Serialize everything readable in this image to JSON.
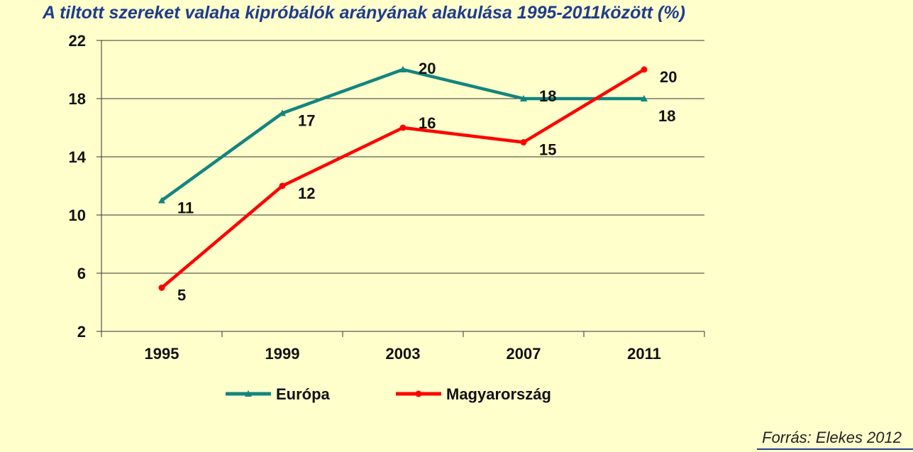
{
  "chart_data": {
    "type": "line",
    "title": "A tiltott szereket valaha kipróbálók arányának alakulása 1995-2011között (%)",
    "xlabel": "",
    "ylabel": "",
    "categories": [
      "1995",
      "1999",
      "2003",
      "2007",
      "2011"
    ],
    "ylim": [
      2,
      22
    ],
    "yticks": [
      2,
      6,
      10,
      14,
      18,
      22
    ],
    "grid": true,
    "legend": "bottom",
    "series": [
      {
        "name": "Európa",
        "values": [
          11,
          17,
          20,
          18,
          18
        ],
        "color": "#13857F",
        "marker": "triangle"
      },
      {
        "name": "Magyarország",
        "values": [
          5,
          12,
          16,
          15,
          20
        ],
        "color": "#FF0000",
        "marker": "circle"
      }
    ]
  },
  "source": "Forrás: Elekes 2012"
}
